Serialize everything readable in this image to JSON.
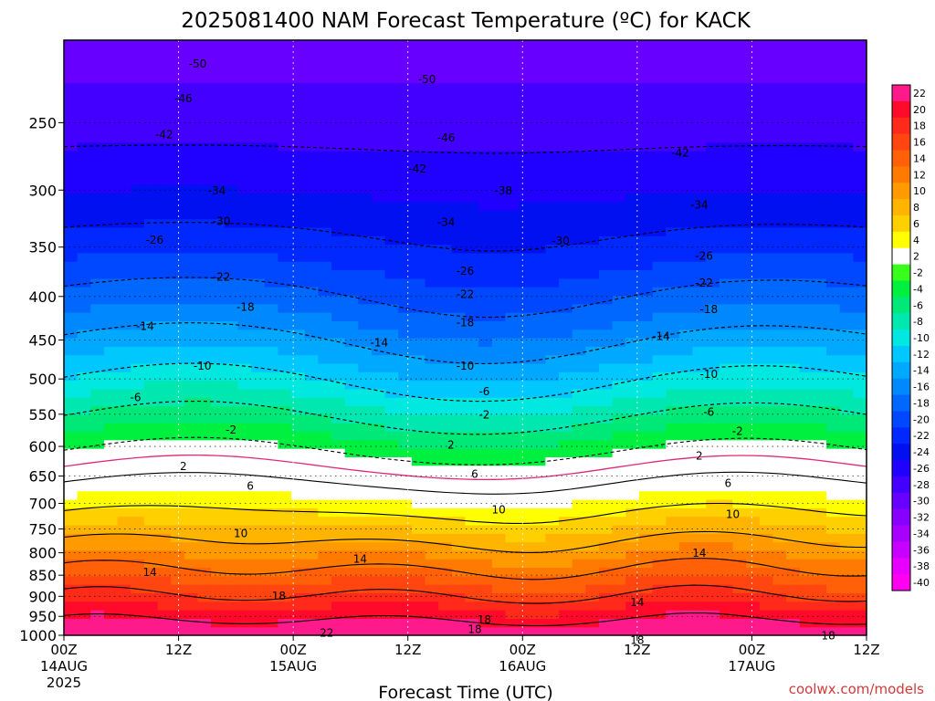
{
  "chart_data": {
    "type": "heatmap",
    "title": "2025081400 NAM Forecast Temperature (ºC) for KACK",
    "xlabel": "Forecast Time (UTC)",
    "ylabel": "",
    "x_range_hours": [
      0,
      84
    ],
    "y_range_hpa": [
      1000,
      200
    ],
    "y_scale": "log-pressure",
    "x_ticks": [
      {
        "hour": 0,
        "label": "00Z",
        "date": "14AUG",
        "year": "2025"
      },
      {
        "hour": 12,
        "label": "12Z"
      },
      {
        "hour": 24,
        "label": "00Z",
        "date": "15AUG"
      },
      {
        "hour": 36,
        "label": "12Z"
      },
      {
        "hour": 48,
        "label": "00Z",
        "date": "16AUG"
      },
      {
        "hour": 60,
        "label": "12Z"
      },
      {
        "hour": 72,
        "label": "00Z",
        "date": "17AUG"
      },
      {
        "hour": 84,
        "label": "12Z"
      }
    ],
    "y_ticks": [
      250,
      300,
      350,
      400,
      450,
      500,
      550,
      600,
      650,
      700,
      750,
      800,
      850,
      900,
      950,
      1000
    ],
    "grid": "dotted",
    "colorbar": {
      "placement": "right",
      "levels": [
        22,
        20,
        18,
        16,
        14,
        12,
        10,
        8,
        6,
        4,
        2,
        -2,
        -4,
        -6,
        -8,
        -10,
        -12,
        -14,
        -16,
        -18,
        -20,
        -22,
        -24,
        -26,
        -28,
        -30,
        -32,
        -34,
        -36,
        -38,
        -40
      ],
      "colors": [
        "#ff1a8c",
        "#ff0a2a",
        "#ff2a1a",
        "#ff4510",
        "#ff6008",
        "#ff7a00",
        "#ff9a00",
        "#ffb500",
        "#ffd000",
        "#ffff00",
        "#ffffff",
        "#38ff1a",
        "#00f040",
        "#00e878",
        "#00e8b0",
        "#00e8e0",
        "#00c8ff",
        "#00a8ff",
        "#0088ff",
        "#0068ff",
        "#0048ff",
        "#0028ff",
        "#0010f0",
        "#2000ff",
        "#4400ff",
        "#6800ff",
        "#8800ff",
        "#a800ff",
        "#c800ff",
        "#e800ff",
        "#ff00f0"
      ]
    },
    "contour_labels": [
      {
        "text": "-50",
        "hour": 14,
        "p": 213
      },
      {
        "text": "-50",
        "hour": 38,
        "p": 222
      },
      {
        "text": "-46",
        "hour": 12.5,
        "p": 234
      },
      {
        "text": "-46",
        "hour": 40,
        "p": 260
      },
      {
        "text": "-42",
        "hour": 10.5,
        "p": 258
      },
      {
        "text": "-42",
        "hour": 37,
        "p": 283
      },
      {
        "text": "-42",
        "hour": 64.5,
        "p": 271
      },
      {
        "text": "-38",
        "hour": 46,
        "p": 300
      },
      {
        "text": "-34",
        "hour": 16,
        "p": 300
      },
      {
        "text": "-34",
        "hour": 40,
        "p": 327
      },
      {
        "text": "-34",
        "hour": 66.5,
        "p": 312
      },
      {
        "text": "-30",
        "hour": 16.5,
        "p": 326
      },
      {
        "text": "-30",
        "hour": 52,
        "p": 344
      },
      {
        "text": "-26",
        "hour": 9.5,
        "p": 343
      },
      {
        "text": "-26",
        "hour": 42,
        "p": 373
      },
      {
        "text": "-26",
        "hour": 67,
        "p": 358
      },
      {
        "text": "-22",
        "hour": 16.5,
        "p": 379
      },
      {
        "text": "-22",
        "hour": 42,
        "p": 397
      },
      {
        "text": "-22",
        "hour": 67,
        "p": 385
      },
      {
        "text": "-18",
        "hour": 19,
        "p": 411
      },
      {
        "text": "-18",
        "hour": 42,
        "p": 429
      },
      {
        "text": "-18",
        "hour": 67.5,
        "p": 414
      },
      {
        "text": "-14",
        "hour": 8.5,
        "p": 433
      },
      {
        "text": "-14",
        "hour": 33,
        "p": 453
      },
      {
        "text": "-14",
        "hour": 62.5,
        "p": 445
      },
      {
        "text": "-10",
        "hour": 14.5,
        "p": 482
      },
      {
        "text": "-10",
        "hour": 42,
        "p": 482
      },
      {
        "text": "-10",
        "hour": 67.5,
        "p": 493
      },
      {
        "text": "-6",
        "hour": 7.5,
        "p": 525
      },
      {
        "text": "-6",
        "hour": 44,
        "p": 517
      },
      {
        "text": "-6",
        "hour": 67.5,
        "p": 546
      },
      {
        "text": "-2",
        "hour": 44,
        "p": 550
      },
      {
        "text": "-2",
        "hour": 70.5,
        "p": 575
      },
      {
        "text": "-2",
        "hour": 17.5,
        "p": 573
      },
      {
        "text": "2",
        "hour": 40.5,
        "p": 597
      },
      {
        "text": "2",
        "hour": 66.5,
        "p": 615
      },
      {
        "text": "2",
        "hour": 12.5,
        "p": 633
      },
      {
        "text": "6",
        "hour": 19.5,
        "p": 667
      },
      {
        "text": "6",
        "hour": 43,
        "p": 646
      },
      {
        "text": "6",
        "hour": 69.5,
        "p": 662
      },
      {
        "text": "10",
        "hour": 45.5,
        "p": 711
      },
      {
        "text": "10",
        "hour": 18.5,
        "p": 758
      },
      {
        "text": "10",
        "hour": 70,
        "p": 720
      },
      {
        "text": "14",
        "hour": 9,
        "p": 842
      },
      {
        "text": "14",
        "hour": 31,
        "p": 813
      },
      {
        "text": "14",
        "hour": 66.5,
        "p": 800
      },
      {
        "text": "14",
        "hour": 60,
        "p": 914
      },
      {
        "text": "18",
        "hour": 22.5,
        "p": 898
      },
      {
        "text": "18",
        "hour": 44,
        "p": 958
      },
      {
        "text": "18",
        "hour": 43,
        "p": 983
      },
      {
        "text": "18",
        "hour": 60,
        "p": 1013
      },
      {
        "text": "18",
        "hour": 80,
        "p": 1000
      },
      {
        "text": "22",
        "hour": 27.5,
        "p": 993
      }
    ]
  },
  "credit": "coolwx.com/models"
}
